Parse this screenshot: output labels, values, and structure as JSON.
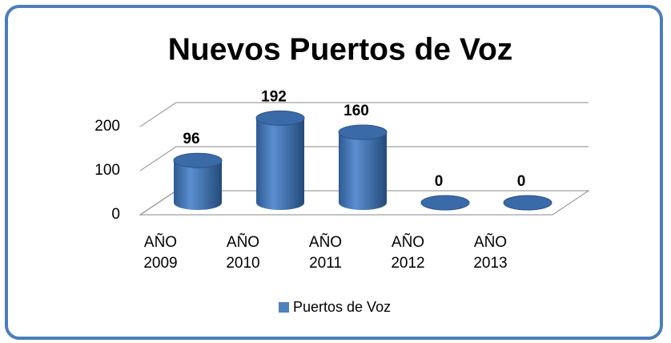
{
  "chart_data": {
    "type": "bar",
    "title": "Nuevos Puertos de Voz",
    "categories": [
      "AÑO 2009",
      "AÑO 2010",
      "AÑO 2011",
      "AÑO 2012",
      "AÑO 2013"
    ],
    "series": [
      {
        "name": "Puertos de Voz",
        "color": "#4f81bd",
        "values": [
          96,
          192,
          160,
          0,
          0
        ]
      }
    ],
    "ylim": [
      0,
      200
    ],
    "yticks": [
      0,
      100,
      200
    ],
    "grid": true
  }
}
